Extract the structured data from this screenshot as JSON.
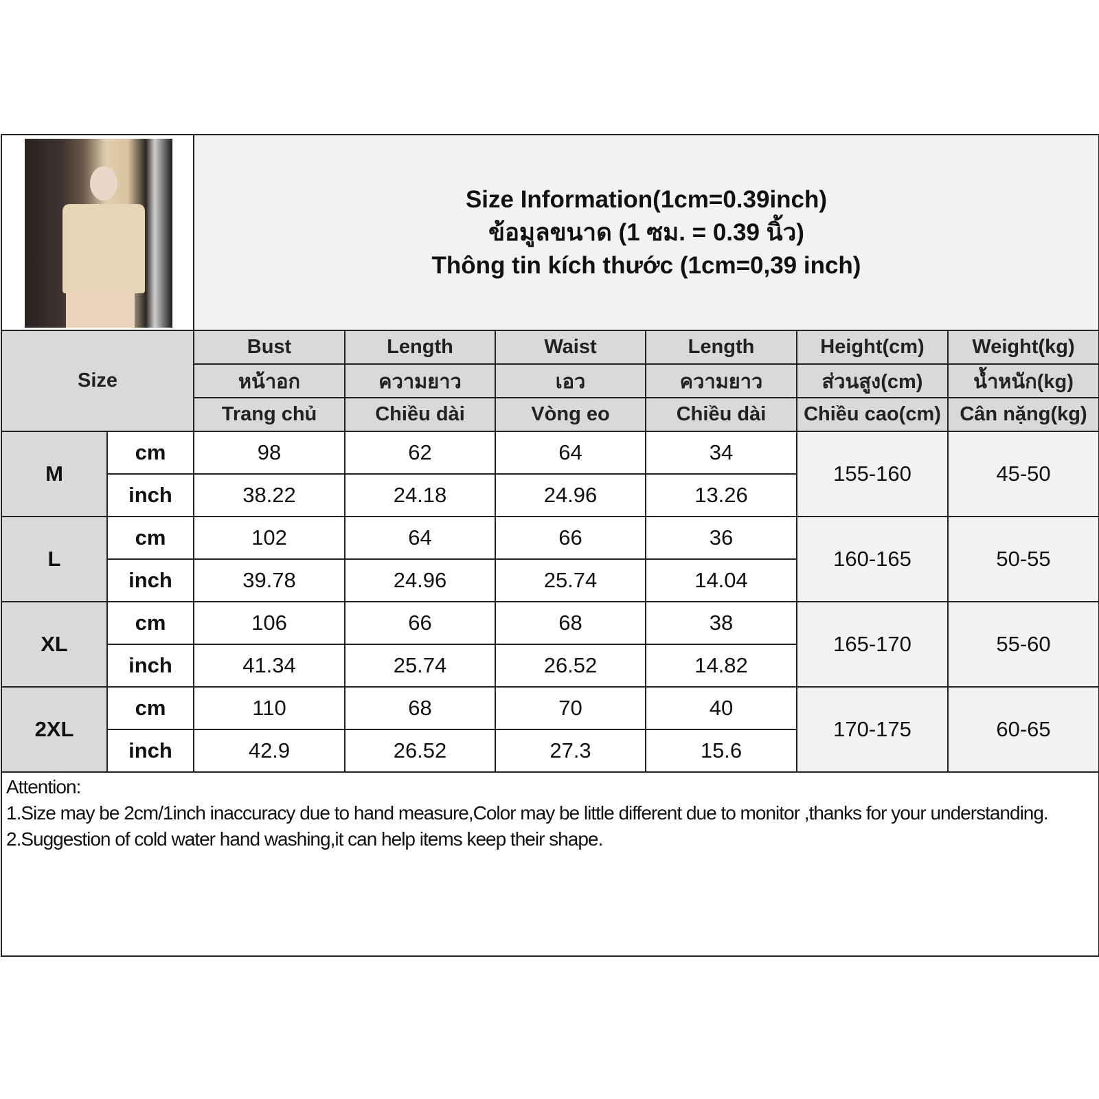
{
  "title_lines": [
    "Size Information(1cm=0.39inch)",
    "ข้อมูลขนาด (1 ซม. = 0.39 นิ้ว)",
    "Thông tin kích thước (1cm=0,39 inch)"
  ],
  "size_label": "Size",
  "columns": [
    {
      "en": "Bust",
      "th": "หน้าอก",
      "vi": "Trang chủ"
    },
    {
      "en": "Length",
      "th": "ความยาว",
      "vi": "Chiều dài"
    },
    {
      "en": "Waist",
      "th": "เอว",
      "vi": "Vòng eo"
    },
    {
      "en": "Length",
      "th": "ความยาว",
      "vi": "Chiều dài"
    },
    {
      "en": "Height(cm)",
      "th": "ส่วนสูง(cm)",
      "vi": "Chiều cao(cm)"
    },
    {
      "en": "Weight(kg)",
      "th": "น้ำหนัก(kg)",
      "vi": "Cân nặng(kg)"
    }
  ],
  "units": {
    "cm": "cm",
    "inch": "inch"
  },
  "rows": [
    {
      "size": "M",
      "cm": [
        "98",
        "62",
        "64",
        "34"
      ],
      "inch": [
        "38.22",
        "24.18",
        "24.96",
        "13.26"
      ],
      "height": "155-160",
      "weight": "45-50"
    },
    {
      "size": "L",
      "cm": [
        "102",
        "64",
        "66",
        "36"
      ],
      "inch": [
        "39.78",
        "24.96",
        "25.74",
        "14.04"
      ],
      "height": "160-165",
      "weight": "50-55"
    },
    {
      "size": "XL",
      "cm": [
        "106",
        "66",
        "68",
        "38"
      ],
      "inch": [
        "41.34",
        "25.74",
        "26.52",
        "14.82"
      ],
      "height": "165-170",
      "weight": "55-60"
    },
    {
      "size": "2XL",
      "cm": [
        "110",
        "68",
        "70",
        "40"
      ],
      "inch": [
        "42.9",
        "26.52",
        "27.3",
        "15.6"
      ],
      "height": "170-175",
      "weight": "60-65"
    }
  ],
  "notes": {
    "heading": "Attention:",
    "items": [
      "1.Size may be 2cm/1inch inaccuracy due to hand measure,Color may be little different due to monitor ,thanks for your understanding.",
      "2.Suggestion of cold water hand washing,it can help items keep their shape."
    ]
  },
  "colors": {
    "header_gray": "#d9d9d9",
    "title_bg": "#f2f2f2",
    "border": "#222222"
  }
}
